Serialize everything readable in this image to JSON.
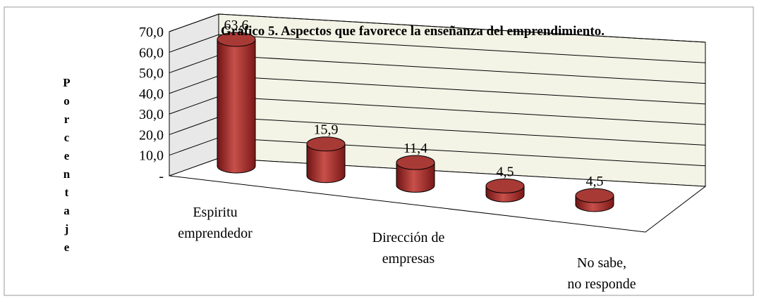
{
  "chart_data": {
    "type": "bar3d",
    "title": "Gráfico 5. Aspectos que favorece la enseñanza del emprendimiento.",
    "y_label": "Porcentaje",
    "categories": [
      "Espiritu emprendedor",
      null,
      "Dirección de empresas",
      null,
      "No sabe, no responde"
    ],
    "values": [
      63.6,
      15.9,
      11.4,
      4.5,
      4.5
    ],
    "value_labels": [
      "63,6",
      "15,9",
      "11,4",
      "4,5",
      "4,5"
    ],
    "color": "#a52a2a",
    "ylim": [
      0,
      70
    ],
    "yticks": [
      {
        "value": 0,
        "label": "-"
      },
      {
        "value": 10,
        "label": "10,0"
      },
      {
        "value": 20,
        "label": "20,0"
      },
      {
        "value": 30,
        "label": "30,0"
      },
      {
        "value": 40,
        "label": "40,0"
      },
      {
        "value": 50,
        "label": "50,0"
      },
      {
        "value": 60,
        "label": "60,0"
      },
      {
        "value": 70,
        "label": "70,0"
      }
    ],
    "grid": true
  }
}
